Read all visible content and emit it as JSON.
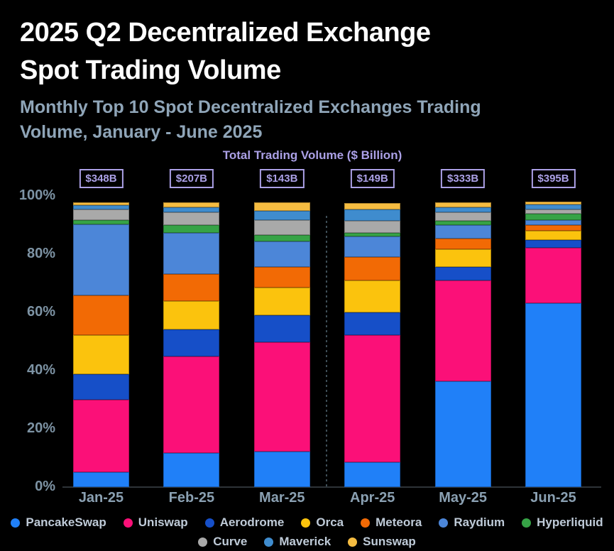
{
  "header": {
    "title_line1": "2025 Q2 Decentralized Exchange",
    "title_line2": "Spot Trading Volume",
    "subtitle_line1": "Monthly Top 10 Spot Decentralized Exchanges Trading",
    "subtitle_line2": "Volume, January - June 2025"
  },
  "chart_data": {
    "type": "bar",
    "stacked": true,
    "normalized": "percent",
    "axis_title": "Total Trading Volume ($ Billion)",
    "categories": [
      "Jan-25",
      "Feb-25",
      "Mar-25",
      "Apr-25",
      "May-25",
      "Jun-25"
    ],
    "totals": [
      "$348B",
      "$207B",
      "$143B",
      "$149B",
      "$333B",
      "$395B"
    ],
    "y_ticks": [
      {
        "label": "0%",
        "value": 0
      },
      {
        "label": "20%",
        "value": 20
      },
      {
        "label": "40%",
        "value": 40
      },
      {
        "label": "60%",
        "value": 60
      },
      {
        "label": "80%",
        "value": 80
      },
      {
        "label": "100%",
        "value": 100
      }
    ],
    "ylim": [
      0,
      100
    ],
    "grid": false,
    "legend_position": "bottom",
    "divider_after_category": "Mar-25",
    "series": [
      {
        "name": "PancakeSwap",
        "color": "#2080F8",
        "values": [
          5.1,
          11.8,
          12.1,
          8.6,
          36.4,
          63.2
        ]
      },
      {
        "name": "Uniswap",
        "color": "#FB1078",
        "values": [
          24.9,
          33.0,
          37.7,
          43.7,
          34.7,
          18.9
        ]
      },
      {
        "name": "Aerodrome",
        "color": "#164FC8",
        "values": [
          8.7,
          9.3,
          9.2,
          7.6,
          4.5,
          2.7
        ]
      },
      {
        "name": "Orca",
        "color": "#FBC30D",
        "values": [
          13.6,
          9.9,
          9.6,
          11.0,
          6.2,
          3.2
        ]
      },
      {
        "name": "Meteora",
        "color": "#F26A05",
        "values": [
          13.5,
          9.1,
          7.1,
          8.1,
          3.7,
          1.9
        ]
      },
      {
        "name": "Raydium",
        "color": "#4C86D8",
        "values": [
          24.5,
          14.2,
          8.7,
          7.0,
          4.6,
          1.9
        ]
      },
      {
        "name": "Hyperliquid",
        "color": "#36A346",
        "values": [
          1.5,
          2.6,
          2.2,
          1.4,
          1.4,
          2.2
        ]
      },
      {
        "name": "Curve",
        "color": "#A9A9A9",
        "values": [
          3.6,
          4.5,
          5.1,
          4.0,
          2.9,
          1.5
        ]
      },
      {
        "name": "Maverick",
        "color": "#3F8CCE",
        "values": [
          1.5,
          1.6,
          3.2,
          3.9,
          1.8,
          1.5
        ]
      },
      {
        "name": "Sunswap",
        "color": "#F5BC41",
        "values": [
          1.0,
          1.8,
          2.8,
          2.4,
          1.6,
          1.0
        ]
      }
    ],
    "legend_rows": [
      [
        "PancakeSwap",
        "Uniswap",
        "Aerodrome",
        "Orca",
        "Meteora",
        "Raydium",
        "Hyperliquid"
      ],
      [
        "Curve",
        "Maverick",
        "Sunswap"
      ]
    ],
    "accent_colors": {
      "title": "#FFFFFF",
      "subtitle": "#8FA5B8",
      "axis_title": "#ABA0E6",
      "axis_labels": "#7D93A4",
      "legend_text": "#BFCBD8",
      "background": "#000000"
    }
  }
}
